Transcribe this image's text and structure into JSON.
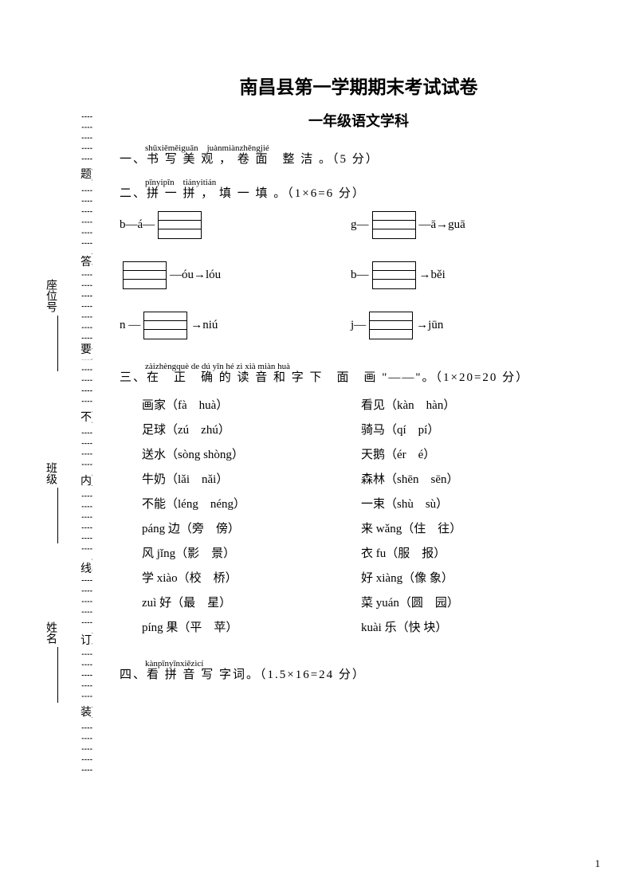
{
  "page_number": "1",
  "title": "南昌县第一学期期末考试试卷",
  "subtitle": "一年级语文学科",
  "gutter": {
    "side_labels": [
      "座位号",
      "班级",
      "姓名"
    ],
    "fold_chars": [
      "题",
      "答",
      "要",
      "不",
      "内",
      "线",
      "订",
      "装"
    ]
  },
  "q1": {
    "pinyin": "shūxiěměiguān　juànmiànzhěngjié",
    "text": "一、书 写 美 观 ， 卷 面　整 洁 。（5 分）"
  },
  "q2": {
    "pinyin": "pīnyipīn　tiányitián",
    "text": "二、拼 一 拼 ， 填 一 填 。（1×6=6 分）",
    "rows": [
      {
        "left_pre": "b—á—",
        "left_post": "",
        "right_pre": "g—",
        "right_post": "—ā→guā"
      },
      {
        "left_pre": "",
        "left_post": "—óu→lóu",
        "right_pre": "b—",
        "right_post": "→běi"
      },
      {
        "left_pre": "n —",
        "left_post": "→niú",
        "right_pre": "j—",
        "right_post": "→jūn"
      }
    ]
  },
  "q3": {
    "pinyin": "zàizhèngquè de dú yīn hé zì xià miàn huà",
    "text": "三、在　正　确 的 读 音 和 字 下　面　画 \"——\"。（1×20=20 分）",
    "pairs": [
      [
        "画家（fà　huà）",
        "看见（kàn　hàn）"
      ],
      [
        "足球（zú　zhú）",
        "骑马（qí　pí）"
      ],
      [
        "送水（sòng shòng）",
        "天鹅（ér　é）"
      ],
      [
        "牛奶（lǎi　nǎi）",
        "森林（shēn　sēn）"
      ],
      [
        "不能（léng　néng）",
        "一束（shù　sù）"
      ],
      [
        "páng 边（旁　傍）",
        "来 wǎng（住　往）"
      ],
      [
        "风 jǐng（影　景）",
        "衣 fu（服　报）"
      ],
      [
        "学 xiào（校　桥）",
        "好 xiàng（像 象）"
      ],
      [
        "zuì 好（最　星）",
        "菜 yuán（圆　园）"
      ],
      [
        "píng 果（平　苹）",
        "kuài 乐（快 块）"
      ]
    ]
  },
  "q4": {
    "pinyin": "kànpīnyīnxiězìcí",
    "text": "四、看 拼 音 写 字词。（1.5×16=24 分）"
  }
}
